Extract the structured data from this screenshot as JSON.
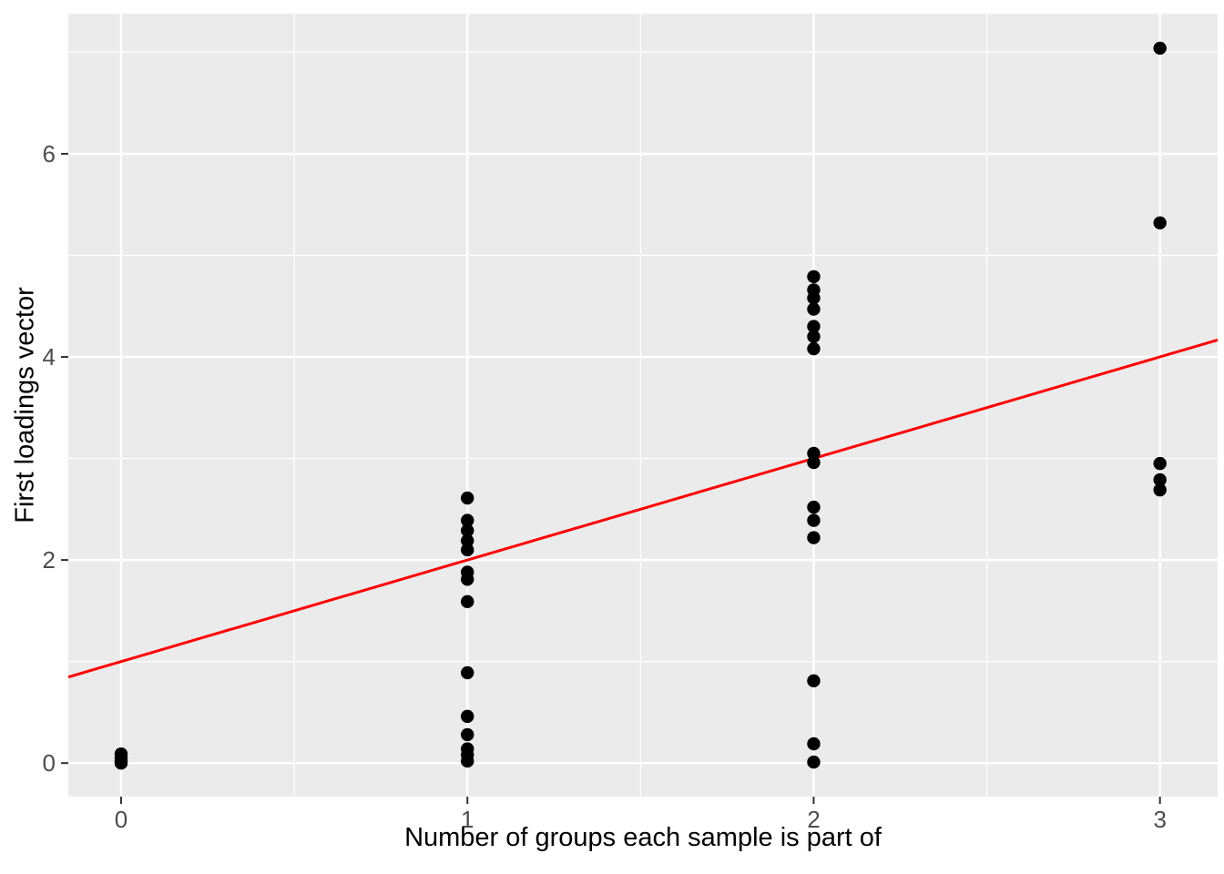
{
  "figure": {
    "background": "#FFFFFF",
    "panel_background": "#EBEBEB",
    "grid_color": "#FFFFFF",
    "tick_mark_color": "#333333",
    "tick_label_color": "#4D4D4D",
    "axis_title_color": "#000000",
    "point_color": "#000000",
    "trend_line_color": "#FF0000"
  },
  "chart_data": {
    "type": "scatter",
    "title": "",
    "xlabel": "Number of groups each sample is part of",
    "ylabel": "First loadings vector",
    "x_tick_values": [
      0,
      1,
      2,
      3
    ],
    "x_tick_labels": [
      "0",
      "1",
      "2",
      "3"
    ],
    "y_tick_values": [
      0,
      2,
      4,
      6
    ],
    "y_tick_labels": [
      "0",
      "2",
      "4",
      "6"
    ],
    "x_minor_ticks": [
      0.5,
      1.5,
      2.5
    ],
    "y_minor_ticks": [
      1,
      3,
      5,
      7
    ],
    "xlim": [
      -0.1525,
      3.1665
    ],
    "ylim": [
      -0.33,
      7.38
    ],
    "grid": true,
    "legend": "none",
    "point_radius_px": 7.2,
    "points": [
      {
        "x": 0,
        "y": 0.09
      },
      {
        "x": 0,
        "y": 0.05
      },
      {
        "x": 0,
        "y": 0.02
      },
      {
        "x": 0,
        "y": 0.0
      },
      {
        "x": 1,
        "y": 2.61
      },
      {
        "x": 1,
        "y": 2.39
      },
      {
        "x": 1,
        "y": 2.29
      },
      {
        "x": 1,
        "y": 2.19
      },
      {
        "x": 1,
        "y": 2.1
      },
      {
        "x": 1,
        "y": 1.88
      },
      {
        "x": 1,
        "y": 1.81
      },
      {
        "x": 1,
        "y": 1.59
      },
      {
        "x": 1,
        "y": 0.89
      },
      {
        "x": 1,
        "y": 0.46
      },
      {
        "x": 1,
        "y": 0.28
      },
      {
        "x": 1,
        "y": 0.14
      },
      {
        "x": 1,
        "y": 0.08
      },
      {
        "x": 1,
        "y": 0.02
      },
      {
        "x": 2,
        "y": 4.79
      },
      {
        "x": 2,
        "y": 4.66
      },
      {
        "x": 2,
        "y": 4.58
      },
      {
        "x": 2,
        "y": 4.47
      },
      {
        "x": 2,
        "y": 4.3
      },
      {
        "x": 2,
        "y": 4.2
      },
      {
        "x": 2,
        "y": 4.08
      },
      {
        "x": 2,
        "y": 3.05
      },
      {
        "x": 2,
        "y": 2.96
      },
      {
        "x": 2,
        "y": 2.52
      },
      {
        "x": 2,
        "y": 2.39
      },
      {
        "x": 2,
        "y": 2.22
      },
      {
        "x": 2,
        "y": 0.81
      },
      {
        "x": 2,
        "y": 0.19
      },
      {
        "x": 2,
        "y": 0.01
      },
      {
        "x": 3,
        "y": 7.04
      },
      {
        "x": 3,
        "y": 5.32
      },
      {
        "x": 3,
        "y": 2.95
      },
      {
        "x": 3,
        "y": 2.79
      },
      {
        "x": 3,
        "y": 2.69
      }
    ],
    "trend_line": {
      "type": "linear",
      "slope": 1.0,
      "intercept": 1.0,
      "color": "#FF0000"
    }
  }
}
